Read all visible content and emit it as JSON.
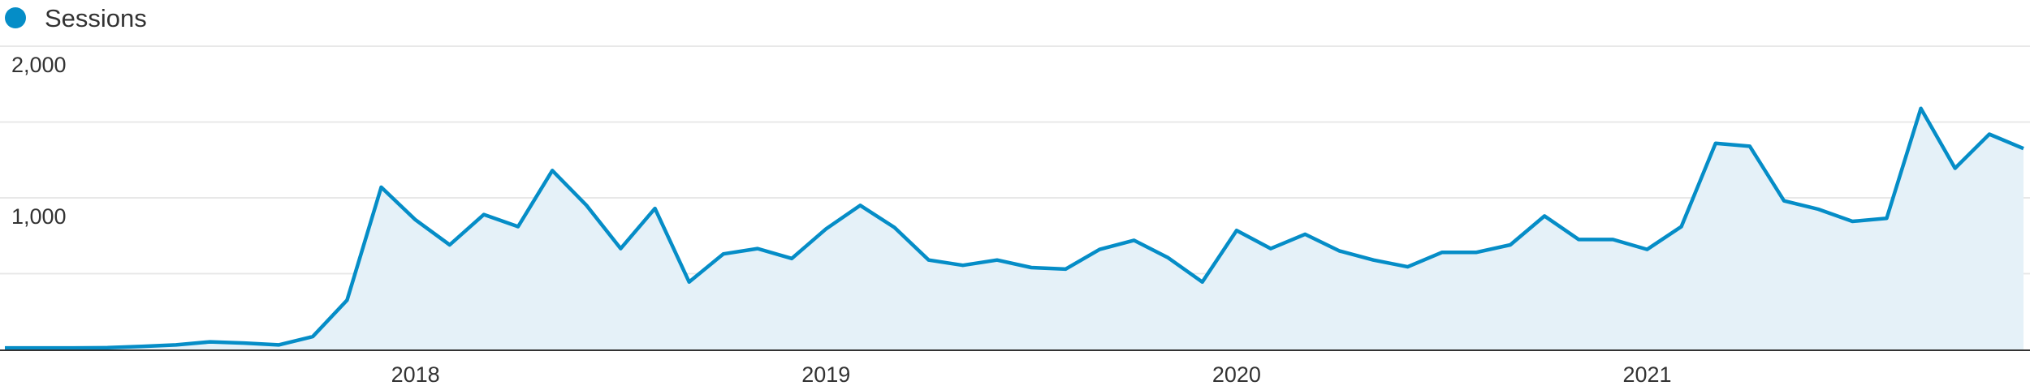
{
  "chart_data": {
    "type": "line",
    "categories": [
      null,
      null,
      null,
      null,
      null,
      null,
      null,
      null,
      null,
      null,
      null,
      null,
      "2018",
      null,
      null,
      null,
      null,
      null,
      null,
      null,
      null,
      null,
      null,
      null,
      "2019",
      null,
      null,
      null,
      null,
      null,
      null,
      null,
      null,
      null,
      null,
      null,
      "2020",
      null,
      null,
      null,
      null,
      null,
      null,
      null,
      null,
      null,
      null,
      null,
      "2021",
      null,
      null,
      null,
      null,
      null,
      null,
      null,
      null,
      null,
      null,
      null
    ],
    "series": [
      {
        "name": "Sessions",
        "color": "#058dc7",
        "fill": "#e5f1f8",
        "values": [
          10,
          10,
          10,
          12,
          20,
          30,
          50,
          42,
          30,
          85,
          325,
          1070,
          855,
          690,
          890,
          810,
          1180,
          950,
          665,
          930,
          445,
          630,
          665,
          600,
          795,
          950,
          805,
          590,
          555,
          590,
          540,
          530,
          660,
          720,
          605,
          445,
          785,
          665,
          760,
          650,
          590,
          545,
          640,
          640,
          690,
          880,
          725,
          725,
          660,
          810,
          1360,
          1340,
          980,
          925,
          845,
          865,
          1590,
          1195,
          1420,
          1325
        ]
      }
    ],
    "ylim": [
      0,
      2000
    ],
    "yticks": [
      {
        "value": 1000,
        "label": "1,000"
      },
      {
        "value": 2000,
        "label": "2,000"
      }
    ],
    "minor_yticks": [
      500,
      1500
    ],
    "grid": true
  }
}
